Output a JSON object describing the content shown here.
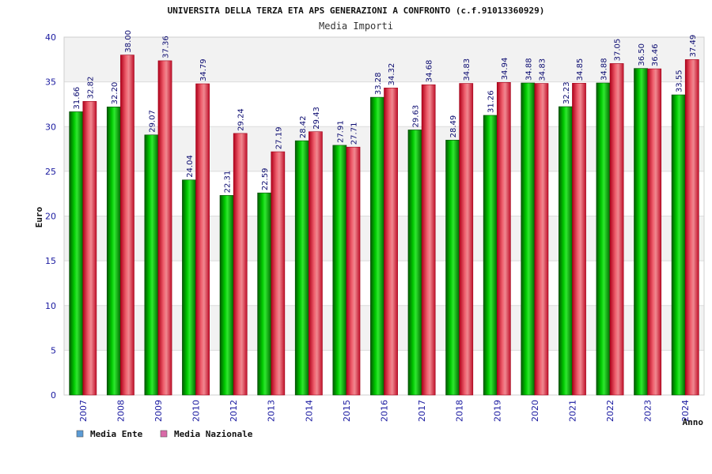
{
  "chart_data": {
    "type": "bar",
    "title": "UNIVERSITA DELLA TERZA ETA APS GENERAZIONI A CONFRONTO (c.f.91013360929)",
    "subtitle": "Media Importi",
    "xlabel": "Anno",
    "ylabel": "Euro",
    "ylim": [
      0,
      40
    ],
    "yticks": [
      0,
      5,
      10,
      15,
      20,
      25,
      30,
      35,
      40
    ],
    "grid": true,
    "legend_position": "bottom-left",
    "categories": [
      "2007",
      "2008",
      "2009",
      "2010",
      "2012",
      "2013",
      "2014",
      "2015",
      "2016",
      "2017",
      "2018",
      "2019",
      "2020",
      "2021",
      "2022",
      "2023",
      "2024"
    ],
    "series": [
      {
        "name": "Media Ente",
        "legend_color": "#5b9bd5",
        "color": "#00b000",
        "values": [
          31.66,
          32.2,
          29.07,
          24.04,
          22.31,
          22.59,
          28.42,
          27.91,
          33.28,
          29.63,
          28.49,
          31.26,
          34.88,
          32.23,
          34.88,
          36.5,
          33.55
        ],
        "labels": [
          "31.66",
          "32.20",
          "29.07",
          "24.04",
          "22.31",
          "22.59",
          "28.42",
          "27.91",
          "33.28",
          "29.63",
          "28.49",
          "31.26",
          "34.88",
          "32.23",
          "34.88",
          "36.50",
          "33.55"
        ]
      },
      {
        "name": "Media Nazionale",
        "legend_color": "#d96aa8",
        "color": "#e8203a",
        "values": [
          32.82,
          38.0,
          37.36,
          34.79,
          29.24,
          27.19,
          29.43,
          27.71,
          34.32,
          34.68,
          34.83,
          34.94,
          34.83,
          34.85,
          37.05,
          36.46,
          37.49
        ],
        "labels": [
          "32.82",
          "38.00",
          "37.36",
          "34.79",
          "29.24",
          "27.19",
          "29.43",
          "27.71",
          "34.32",
          "34.68",
          "34.83",
          "34.94",
          "34.83",
          "34.85",
          "37.05",
          "36.46",
          "37.49"
        ]
      }
    ]
  }
}
